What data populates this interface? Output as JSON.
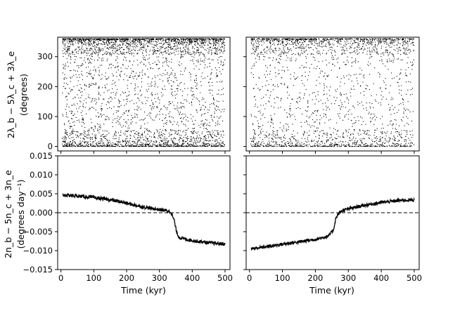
{
  "chart_data": [
    {
      "type": "scatter",
      "panel": "top-left",
      "ylabel_line1": "2λ_b − 5λ_c + 3λ_e",
      "ylabel_line2": "(degrees)",
      "xlim": [
        -10,
        515
      ],
      "ylim": [
        -15,
        365
      ],
      "xticks": [
        0,
        100,
        200,
        300,
        400,
        500
      ],
      "yticks": [
        0,
        100,
        200,
        300
      ],
      "ytick_labels": [
        "0",
        "100",
        "200",
        "300"
      ],
      "xtick_labels_shown": false,
      "series": [
        {
          "marker": "dot",
          "color": "#000000",
          "description_of_data": "Resonant angle sampled over 0-500 kyr; circulates 0-360 degrees with dense bands near 0 and 360"
        }
      ]
    },
    {
      "type": "scatter",
      "panel": "top-right",
      "xlim": [
        -10,
        515
      ],
      "ylim": [
        -15,
        365
      ],
      "xticks": [
        0,
        100,
        200,
        300,
        400,
        500
      ],
      "yticks": [
        0,
        100,
        200,
        300
      ],
      "ytick_labels_shown": false,
      "xtick_labels_shown": false,
      "series": [
        {
          "marker": "dot",
          "color": "#000000"
        }
      ]
    },
    {
      "type": "line",
      "panel": "bottom-left",
      "ylabel_line1": "2n_b − 5n_c + 3n_e",
      "ylabel_line2": "(degrees day⁻¹)",
      "xlabel": "Time (kyr)",
      "xlim": [
        -10,
        515
      ],
      "ylim": [
        -0.015,
        0.015
      ],
      "xticks": [
        0,
        100,
        200,
        300,
        400,
        500
      ],
      "xtick_labels": [
        "0",
        "100",
        "200",
        "300",
        "400",
        "500"
      ],
      "yticks": [
        -0.015,
        -0.01,
        -0.005,
        0.0,
        0.005,
        0.01,
        0.015
      ],
      "ytick_labels": [
        "−0.015",
        "−0.010",
        "−0.005",
        "0.000",
        "0.005",
        "0.010",
        "0.015"
      ],
      "reference_line": {
        "y": 0,
        "style": "dashed"
      },
      "series": [
        {
          "color": "#000000",
          "x": [
            5,
            20,
            50,
            100,
            150,
            175,
            200,
            230,
            250,
            280,
            300,
            320,
            335,
            345,
            352,
            360,
            380,
            400,
            430,
            460,
            500
          ],
          "y": [
            0.0047,
            0.0046,
            0.0044,
            0.004,
            0.0034,
            0.003,
            0.0025,
            0.0019,
            0.0015,
            0.0011,
            0.0008,
            0.0006,
            0.0002,
            -0.002,
            -0.005,
            -0.0065,
            -0.007,
            -0.0073,
            -0.0077,
            -0.008,
            -0.0083
          ]
        }
      ]
    },
    {
      "type": "line",
      "panel": "bottom-right",
      "xlabel": "Time (kyr)",
      "xlim": [
        -10,
        515
      ],
      "ylim": [
        -0.015,
        0.015
      ],
      "xticks": [
        0,
        100,
        200,
        300,
        400,
        500
      ],
      "xtick_labels": [
        "0",
        "100",
        "200",
        "300",
        "400",
        "500"
      ],
      "yticks": [
        -0.015,
        -0.01,
        -0.005,
        0.0,
        0.005,
        0.01,
        0.015
      ],
      "ytick_labels_shown": false,
      "reference_line": {
        "y": 0,
        "style": "dashed"
      },
      "series": [
        {
          "color": "#000000",
          "x": [
            5,
            50,
            100,
            150,
            200,
            240,
            255,
            262,
            270,
            280,
            300,
            350,
            400,
            450,
            500
          ],
          "y": [
            -0.0095,
            -0.009,
            -0.0083,
            -0.0077,
            -0.007,
            -0.0062,
            -0.0045,
            -0.0015,
            -0.0003,
            0.0005,
            0.001,
            0.002,
            0.0027,
            0.0032,
            0.0034
          ]
        }
      ]
    }
  ]
}
